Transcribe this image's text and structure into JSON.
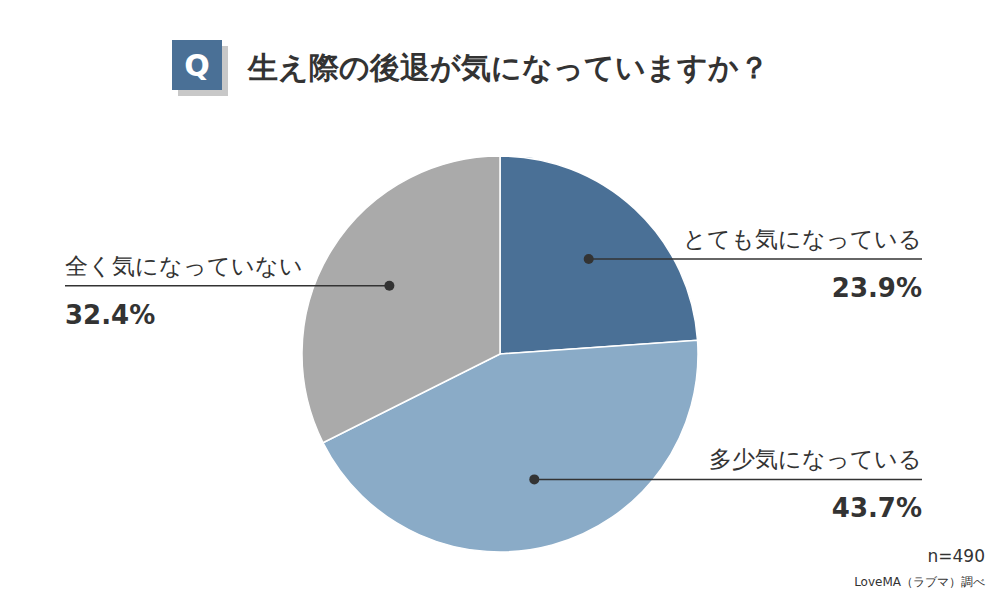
{
  "chart_data": {
    "type": "pie",
    "title": "生え際の後退が気になっていますか？",
    "title_badge": "Q",
    "categories": [
      "とても気になっている",
      "多少気になっている",
      "全く気になっていない"
    ],
    "values": [
      23.9,
      43.7,
      32.4
    ],
    "value_labels": [
      "23.9%",
      "43.7%",
      "32.4%"
    ],
    "colors": [
      "#4a7096",
      "#8aabc7",
      "#aaaaaa"
    ],
    "data_labels": true,
    "note": "n=490",
    "source": "LoveMA（ラブマ）調べ"
  }
}
